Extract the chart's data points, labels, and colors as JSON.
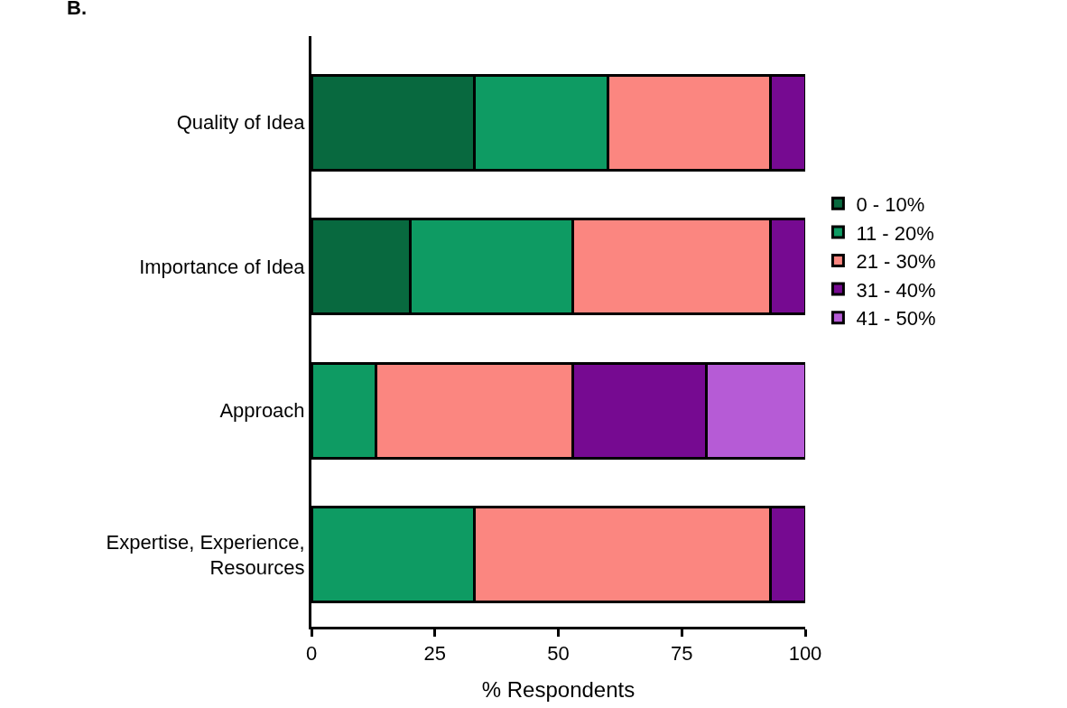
{
  "chart_data": {
    "type": "bar",
    "orientation": "horizontal",
    "stacked": true,
    "categories": [
      "Quality of Idea",
      "Importance of Idea",
      "Approach",
      "Expertise, Experience, Resources"
    ],
    "series": [
      {
        "name": "0 - 10%",
        "color": "#08693f",
        "values": [
          33,
          20,
          null,
          null
        ]
      },
      {
        "name": "11 - 20%",
        "color": "#0e9b63",
        "values": [
          27,
          33,
          13,
          33
        ]
      },
      {
        "name": "21 - 30%",
        "color": "#fb8680",
        "values": [
          33,
          40,
          40,
          60
        ]
      },
      {
        "name": "31 - 40%",
        "color": "#760a91",
        "values": [
          7,
          7,
          27,
          7
        ]
      },
      {
        "name": "41 - 50%",
        "color": "#b65bd6",
        "values": [
          null,
          null,
          20,
          null
        ]
      }
    ],
    "xlabel": "% Respondents",
    "xlim": [
      0,
      100
    ],
    "xticks": [
      0,
      25,
      50,
      75,
      100
    ],
    "annotations": [
      "B."
    ],
    "legend": "right",
    "grid": false
  }
}
